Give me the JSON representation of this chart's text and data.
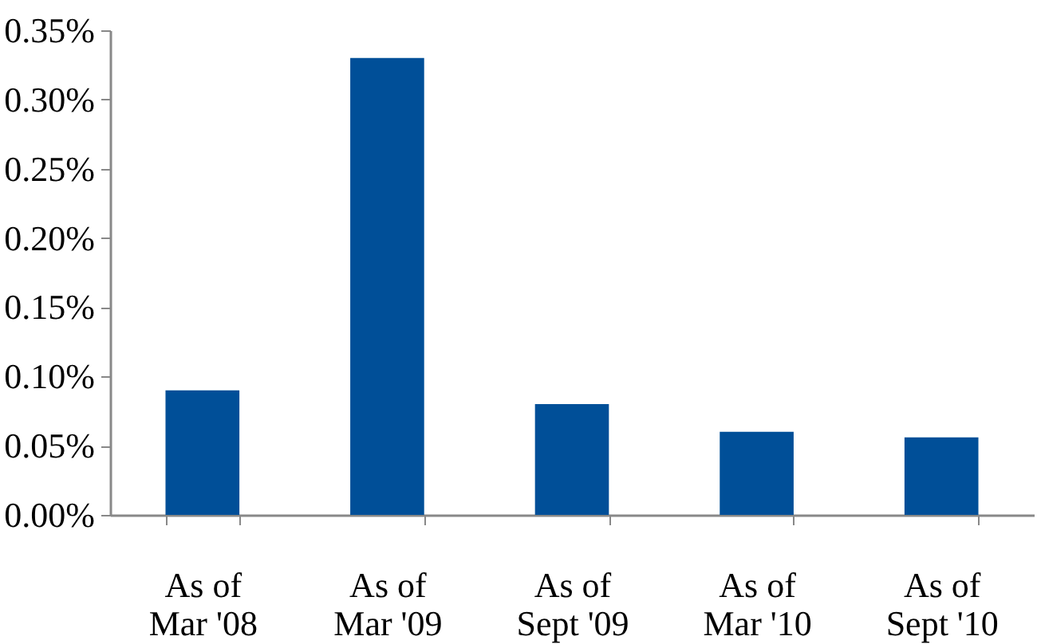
{
  "chart_data": {
    "type": "bar",
    "categories": [
      "As of\nMar '08",
      "As of\nMar '09",
      "As of\nSept '09",
      "As of\nMar '10",
      "As of\nSept '10"
    ],
    "values": [
      0.09,
      0.33,
      0.08,
      0.06,
      0.056
    ],
    "color": "#004f98",
    "ylim": [
      0,
      0.35
    ],
    "yticks": [
      {
        "value": 0,
        "label": "0.00%"
      },
      {
        "value": 0.05,
        "label": "0.05%"
      },
      {
        "value": 0.1,
        "label": "0.10%"
      },
      {
        "value": 0.15,
        "label": "0.15%"
      },
      {
        "value": 0.2,
        "label": "0.20%"
      },
      {
        "value": 0.25,
        "label": "0.25%"
      },
      {
        "value": 0.3,
        "label": "0.30%"
      },
      {
        "value": 0.35,
        "label": "0.35%"
      }
    ],
    "grid": false
  }
}
